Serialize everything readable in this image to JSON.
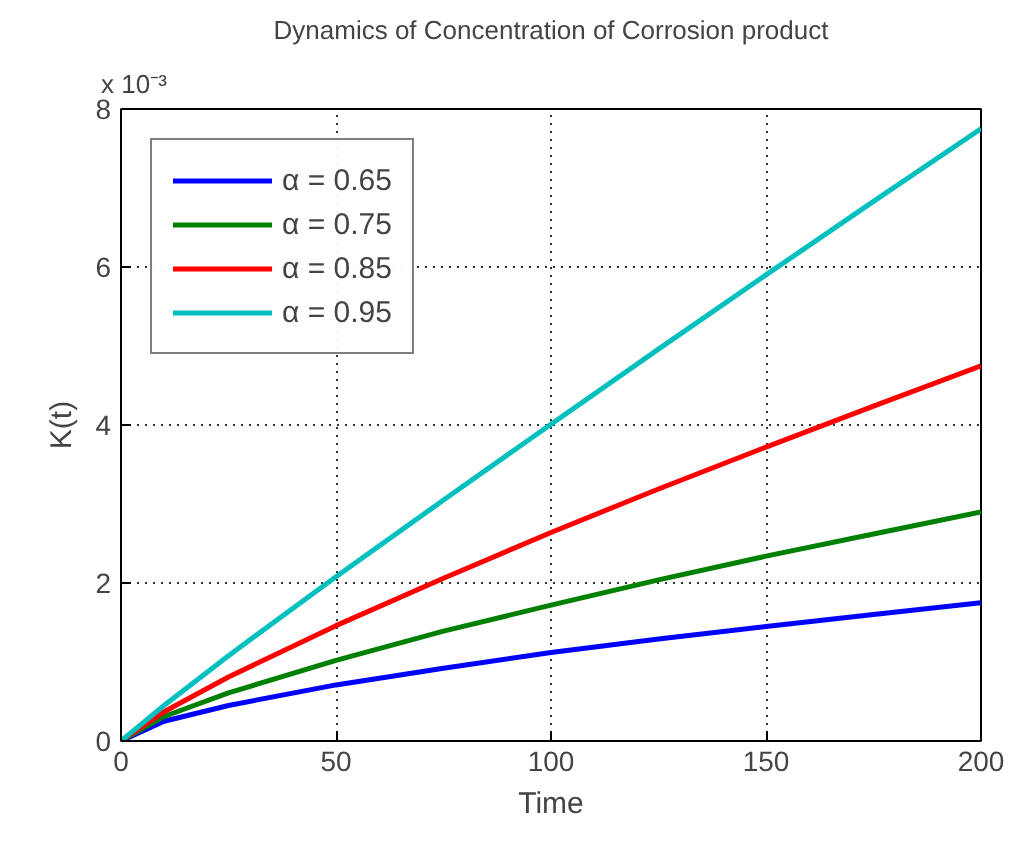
{
  "chart_data": {
    "type": "line",
    "title": "Dynamics of Concentration of Corrosion product",
    "xlabel": "Time",
    "ylabel": "K(t)",
    "annotations": [
      "x 10⁻³"
    ],
    "x": [
      0,
      10,
      25,
      50,
      75,
      100,
      125,
      150,
      175,
      200
    ],
    "series": [
      {
        "name": "α = 0.65",
        "color": "#0000ff",
        "values": [
          0,
          0.25,
          0.45,
          0.71,
          0.92,
          1.12,
          1.29,
          1.45,
          1.6,
          1.75
        ]
      },
      {
        "name": "α = 0.75",
        "color": "#008000",
        "values": [
          0,
          0.31,
          0.61,
          1.02,
          1.39,
          1.72,
          2.04,
          2.34,
          2.62,
          2.9
        ]
      },
      {
        "name": "α = 0.85",
        "color": "#ff0000",
        "values": [
          0,
          0.37,
          0.81,
          1.46,
          2.06,
          2.64,
          3.19,
          3.72,
          4.24,
          4.75
        ]
      },
      {
        "name": "α = 0.95",
        "color": "#00bfbf",
        "values": [
          0,
          0.45,
          1.08,
          2.08,
          3.05,
          4.01,
          4.96,
          5.9,
          6.83,
          7.75
        ]
      }
    ],
    "xlim": [
      0,
      200
    ],
    "ylim": [
      0,
      8
    ],
    "xticks": [
      0,
      50,
      100,
      150,
      200
    ],
    "yticks": [
      0,
      2,
      4,
      6,
      8
    ],
    "grid": true,
    "legend": "top left",
    "line_style": "solid"
  }
}
